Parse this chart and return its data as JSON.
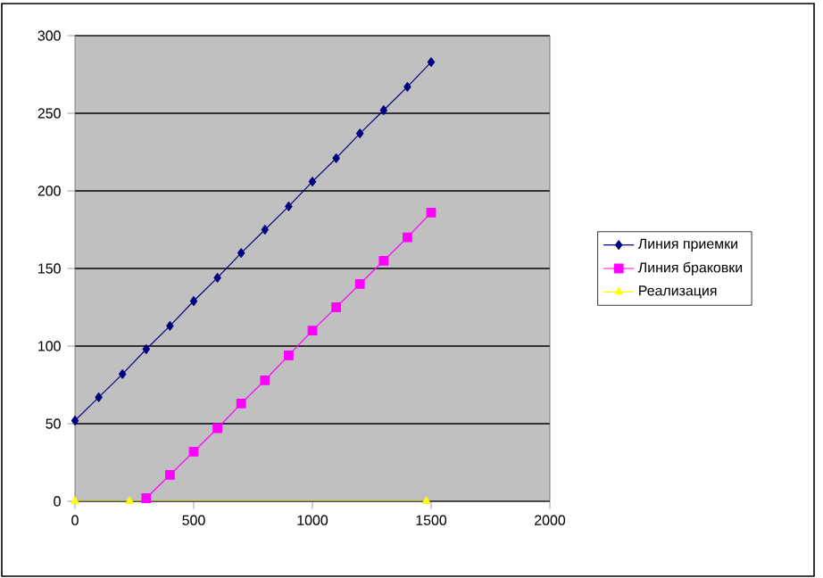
{
  "chart_data": {
    "type": "line",
    "xlim": [
      0,
      2000
    ],
    "ylim": [
      0,
      300
    ],
    "xticks": [
      0,
      500,
      1000,
      1500,
      2000
    ],
    "yticks": [
      0,
      50,
      100,
      150,
      200,
      250,
      300
    ],
    "grid": "y",
    "legend": "right",
    "series": [
      {
        "name": "Линия приемки",
        "color": "#000080",
        "marker": "diamond",
        "x": [
          0,
          100,
          200,
          300,
          400,
          500,
          600,
          700,
          800,
          900,
          1000,
          1100,
          1200,
          1300,
          1400,
          1500
        ],
        "values": [
          52,
          67,
          82,
          98,
          113,
          129,
          144,
          160,
          175,
          190,
          206,
          221,
          237,
          252,
          267,
          283
        ]
      },
      {
        "name": "Линия браковки",
        "color": "#ff00ff",
        "marker": "square",
        "x": [
          300,
          400,
          500,
          600,
          700,
          800,
          900,
          1000,
          1100,
          1200,
          1300,
          1400,
          1500
        ],
        "values": [
          2,
          17,
          32,
          47,
          63,
          78,
          94,
          110,
          125,
          140,
          155,
          170,
          186
        ]
      },
      {
        "name": "Реализация",
        "color": "#ffff00",
        "marker": "triangle",
        "x": [
          0,
          230,
          1480
        ],
        "values": [
          0,
          0,
          0
        ]
      }
    ]
  }
}
